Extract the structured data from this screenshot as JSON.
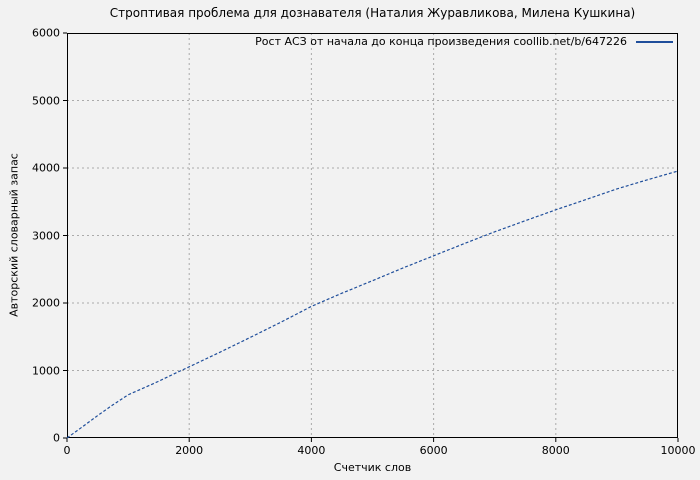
{
  "figure": {
    "background_color": "#f2f2f2",
    "text_color": "#000000",
    "grid_color": "#ababab",
    "axis_color": "#000000"
  },
  "chart_data": {
    "type": "line",
    "title": "Строптивая проблема для дознавателя (Наталия Журавликова, Милена Кушкина)",
    "xlabel": "Счетчик слов",
    "ylabel": "Авторский словарный запас",
    "xlim": [
      0,
      10000
    ],
    "ylim": [
      0,
      6000
    ],
    "xticks": [
      0,
      2000,
      4000,
      6000,
      8000,
      10000
    ],
    "yticks": [
      0,
      1000,
      2000,
      3000,
      4000,
      5000,
      6000
    ],
    "grid": true,
    "grid_style": "dotted",
    "legend_position": "top-right-inside",
    "series": [
      {
        "name": "Рост АСЗ от начала до конца произведения coollib.net/b/647226",
        "color": "#1f4e9b",
        "line_style": "dashed-fine",
        "x": [
          0,
          250,
          500,
          750,
          1000,
          1250,
          1500,
          1750,
          2000,
          2500,
          3000,
          3500,
          4000,
          4500,
          5000,
          5500,
          6000,
          6500,
          7000,
          7500,
          8000,
          8500,
          9000,
          9500,
          10000
        ],
        "y": [
          0,
          165,
          330,
          490,
          640,
          740,
          840,
          950,
          1055,
          1270,
          1490,
          1715,
          1950,
          2145,
          2330,
          2520,
          2700,
          2880,
          3055,
          3220,
          3380,
          3535,
          3690,
          3825,
          3955
        ]
      }
    ]
  }
}
